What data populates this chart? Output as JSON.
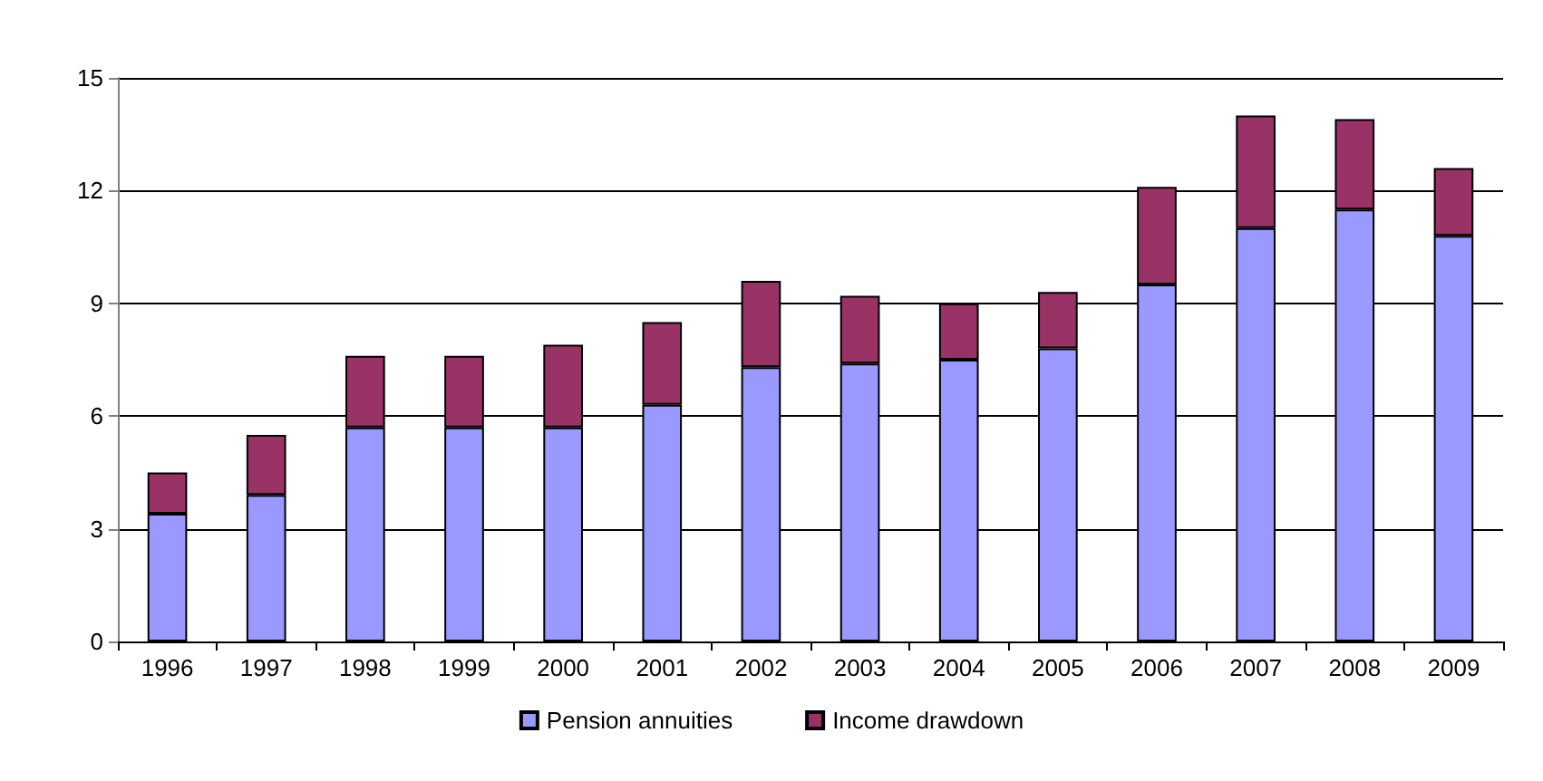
{
  "chart_data": {
    "type": "bar",
    "stacked": true,
    "categories": [
      "1996",
      "1997",
      "1998",
      "1999",
      "2000",
      "2001",
      "2002",
      "2003",
      "2004",
      "2005",
      "2006",
      "2007",
      "2008",
      "2009"
    ],
    "series": [
      {
        "name": "Pension annuities",
        "color": "#9999ff",
        "values": [
          3.4,
          3.9,
          5.7,
          5.7,
          5.7,
          6.3,
          7.3,
          7.4,
          7.5,
          7.8,
          9.5,
          11.0,
          11.5,
          10.8
        ]
      },
      {
        "name": "Income drawdown",
        "color": "#993366",
        "values": [
          1.1,
          1.6,
          1.9,
          1.9,
          2.2,
          2.2,
          2.3,
          1.8,
          1.5,
          1.5,
          2.6,
          3.0,
          2.4,
          1.8
        ]
      }
    ],
    "ylim": [
      0,
      15
    ],
    "yticks": [
      0,
      3,
      6,
      9,
      12,
      15
    ],
    "grid": "y",
    "legend": "bottom"
  }
}
